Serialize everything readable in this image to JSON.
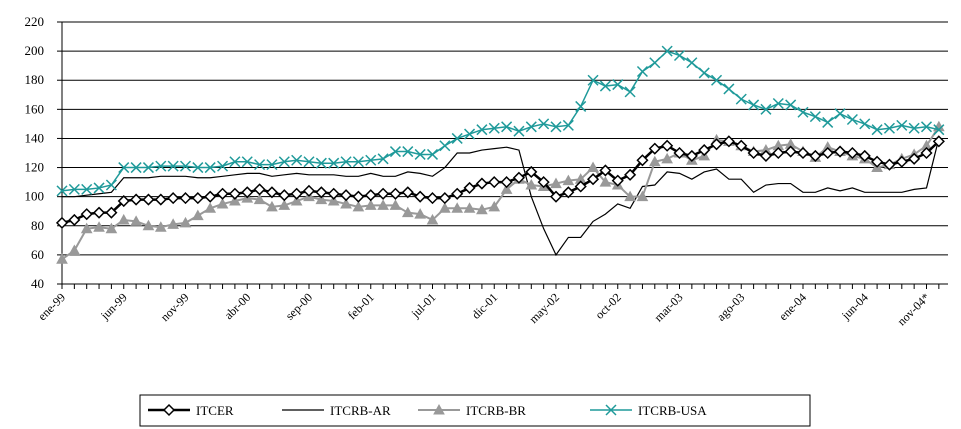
{
  "chart_data": {
    "type": "line",
    "categories": [
      "ene-99",
      null,
      null,
      null,
      null,
      "jun-99",
      null,
      null,
      null,
      null,
      "nov-99",
      null,
      null,
      null,
      null,
      "abr-00",
      null,
      null,
      null,
      null,
      "sep-00",
      null,
      null,
      null,
      null,
      "feb-01",
      null,
      null,
      null,
      null,
      "jul-01",
      null,
      null,
      null,
      null,
      "dic-01",
      null,
      null,
      null,
      null,
      "may-02",
      null,
      null,
      null,
      null,
      "oct-02",
      null,
      null,
      null,
      null,
      "mar-03",
      null,
      null,
      null,
      null,
      "ago-03",
      null,
      null,
      null,
      null,
      "ene-04",
      null,
      null,
      null,
      null,
      "jun-04",
      null,
      null,
      null,
      null,
      "nov-04*",
      null
    ],
    "series": [
      {
        "name": "ITCER",
        "color": "#000000",
        "marker": "diamond",
        "width": 2.5,
        "values": [
          82,
          84,
          88,
          89,
          89,
          97,
          98,
          98,
          98,
          99,
          99,
          99,
          100,
          102,
          102,
          103,
          105,
          103,
          101,
          102,
          104,
          103,
          102,
          101,
          100,
          101,
          102,
          102,
          103,
          100,
          99,
          99,
          102,
          106,
          109,
          110,
          110,
          113,
          117,
          110,
          100,
          103,
          107,
          112,
          118,
          111,
          115,
          125,
          133,
          135,
          130,
          128,
          132,
          136,
          138,
          135,
          130,
          128,
          130,
          131,
          130,
          128,
          130,
          131,
          130,
          128,
          124,
          122,
          124,
          126,
          130,
          138
        ]
      },
      {
        "name": "ITCRB-AR",
        "color": "#000000",
        "marker": "none",
        "width": 1.2,
        "values": [
          100,
          100,
          101,
          102,
          103,
          113,
          113,
          113,
          114,
          114,
          114,
          113,
          113,
          114,
          115,
          116,
          116,
          114,
          115,
          116,
          115,
          115,
          115,
          114,
          114,
          116,
          114,
          114,
          117,
          116,
          114,
          120,
          130,
          130,
          132,
          133,
          134,
          132,
          100,
          78,
          60,
          72,
          72,
          83,
          88,
          95,
          92,
          107,
          108,
          117,
          116,
          112,
          117,
          119,
          112,
          112,
          103,
          108,
          109,
          109,
          103,
          103,
          106,
          104,
          106,
          103,
          103,
          103,
          103,
          105,
          106,
          140
        ]
      },
      {
        "name": "ITCRB-BR",
        "color": "#999999",
        "marker": "triangle",
        "width": 2,
        "values": [
          57,
          63,
          78,
          79,
          78,
          84,
          83,
          80,
          79,
          81,
          82,
          87,
          92,
          95,
          97,
          99,
          98,
          93,
          94,
          97,
          100,
          98,
          97,
          95,
          93,
          94,
          94,
          94,
          89,
          88,
          84,
          92,
          92,
          92,
          91,
          93,
          105,
          112,
          108,
          107,
          109,
          111,
          112,
          120,
          110,
          108,
          100,
          100,
          124,
          126,
          130,
          125,
          128,
          139,
          138,
          135,
          131,
          132,
          135,
          136,
          131,
          127,
          134,
          131,
          128,
          126,
          120,
          122,
          126,
          129,
          135,
          148
        ]
      },
      {
        "name": "ITCRB-USA",
        "color": "#1f9a9a",
        "marker": "x",
        "width": 1.5,
        "values": [
          104,
          105,
          105,
          106,
          108,
          120,
          120,
          120,
          121,
          121,
          121,
          120,
          120,
          121,
          124,
          124,
          122,
          122,
          124,
          125,
          124,
          123,
          123,
          124,
          124,
          125,
          126,
          131,
          131,
          129,
          129,
          135,
          140,
          143,
          146,
          147,
          148,
          145,
          148,
          150,
          148,
          149,
          162,
          180,
          176,
          177,
          172,
          186,
          192,
          200,
          197,
          192,
          185,
          180,
          174,
          167,
          163,
          160,
          164,
          163,
          158,
          155,
          151,
          157,
          153,
          150,
          146,
          147,
          149,
          147,
          148,
          146
        ]
      }
    ],
    "ylim": [
      40,
      220
    ],
    "yticks": [
      40,
      60,
      80,
      100,
      120,
      140,
      160,
      180,
      200,
      220
    ],
    "grid": true,
    "legend": "bottom"
  }
}
